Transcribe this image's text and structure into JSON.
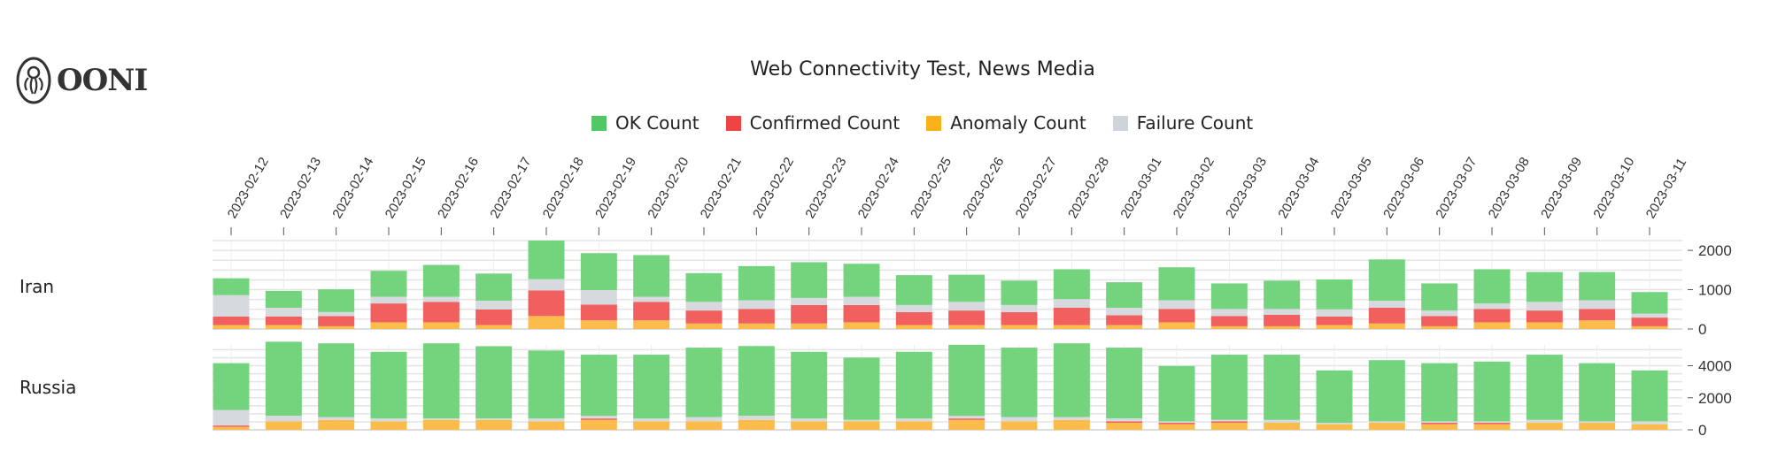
{
  "logo": {
    "text": "OONI"
  },
  "chart_data": {
    "type": "bar",
    "stacked": true,
    "title": "Web Connectivity Test, News Media",
    "legend_position": "top",
    "grid": true,
    "categories": [
      "2023-02-12",
      "2023-02-13",
      "2023-02-14",
      "2023-02-15",
      "2023-02-16",
      "2023-02-17",
      "2023-02-18",
      "2023-02-19",
      "2023-02-20",
      "2023-02-21",
      "2023-02-22",
      "2023-02-23",
      "2023-02-24",
      "2023-02-25",
      "2023-02-26",
      "2023-02-27",
      "2023-02-28",
      "2023-03-01",
      "2023-03-02",
      "2023-03-03",
      "2023-03-04",
      "2023-03-05",
      "2023-03-06",
      "2023-03-07",
      "2023-03-08",
      "2023-03-09",
      "2023-03-10",
      "2023-03-11"
    ],
    "series_meta": [
      {
        "key": "anomaly",
        "name": "Anomaly Count",
        "color": "#fbbc4c"
      },
      {
        "key": "confirmed",
        "name": "Confirmed Count",
        "color": "#f25f5f"
      },
      {
        "key": "failure",
        "name": "Failure Count",
        "color": "#d6d9de"
      },
      {
        "key": "ok",
        "name": "OK Count",
        "color": "#74d47e"
      }
    ],
    "legend_order": [
      "ok",
      "confirmed",
      "anomaly",
      "failure"
    ],
    "legend_colors": {
      "ok": "#51c765",
      "confirmed": "#ef4444",
      "anomaly": "#fbb11b",
      "failure": "#ced4da"
    },
    "panels": [
      {
        "label": "Iran",
        "ylim": [
          0,
          2250
        ],
        "yticks": [
          0,
          1000,
          2000
        ],
        "ytick_labels": [
          "0",
          "1000",
          "2000"
        ],
        "anomaly": [
          100,
          100,
          70,
          170,
          170,
          100,
          330,
          220,
          220,
          140,
          140,
          140,
          170,
          100,
          100,
          100,
          100,
          100,
          170,
          70,
          70,
          100,
          140,
          70,
          170,
          170,
          220,
          70
        ],
        "confirmed": [
          220,
          220,
          260,
          480,
          520,
          400,
          650,
          400,
          470,
          330,
          370,
          470,
          440,
          330,
          370,
          330,
          440,
          250,
          340,
          260,
          290,
          220,
          400,
          260,
          340,
          300,
          290,
          220
        ],
        "failure": [
          540,
          220,
          100,
          170,
          130,
          220,
          290,
          370,
          130,
          220,
          220,
          180,
          210,
          180,
          220,
          180,
          220,
          190,
          220,
          180,
          150,
          180,
          180,
          140,
          140,
          220,
          220,
          100
        ],
        "ok": [
          430,
          430,
          580,
          660,
          810,
          690,
          980,
          940,
          1060,
          730,
          870,
          910,
          840,
          760,
          690,
          620,
          760,
          650,
          840,
          650,
          720,
          760,
          1050,
          690,
          870,
          760,
          720,
          550
        ]
      },
      {
        "label": "Russia",
        "ylim": [
          0,
          5300
        ],
        "yticks": [
          0,
          2000,
          4000
        ],
        "ytick_labels": [
          "0",
          "2000",
          "4000"
        ],
        "anomaly": [
          180,
          530,
          620,
          530,
          620,
          620,
          530,
          620,
          530,
          530,
          620,
          530,
          530,
          530,
          620,
          530,
          620,
          440,
          350,
          440,
          440,
          350,
          440,
          350,
          350,
          440,
          440,
          350
        ],
        "confirmed": [
          90,
          0,
          0,
          0,
          0,
          0,
          0,
          90,
          0,
          0,
          0,
          0,
          0,
          0,
          90,
          0,
          0,
          90,
          90,
          90,
          0,
          0,
          0,
          90,
          90,
          0,
          0,
          0
        ],
        "failure": [
          970,
          350,
          180,
          180,
          90,
          90,
          180,
          160,
          180,
          270,
          260,
          180,
          90,
          180,
          160,
          270,
          180,
          180,
          90,
          90,
          180,
          90,
          90,
          90,
          90,
          180,
          90,
          180
        ],
        "ok": [
          2920,
          4620,
          4600,
          4160,
          4690,
          4510,
          4240,
          3820,
          3980,
          4330,
          4350,
          4160,
          3890,
          4160,
          4440,
          4330,
          4600,
          4420,
          3450,
          4070,
          4070,
          3270,
          3820,
          3630,
          3730,
          4070,
          3630,
          3180
        ]
      }
    ]
  }
}
